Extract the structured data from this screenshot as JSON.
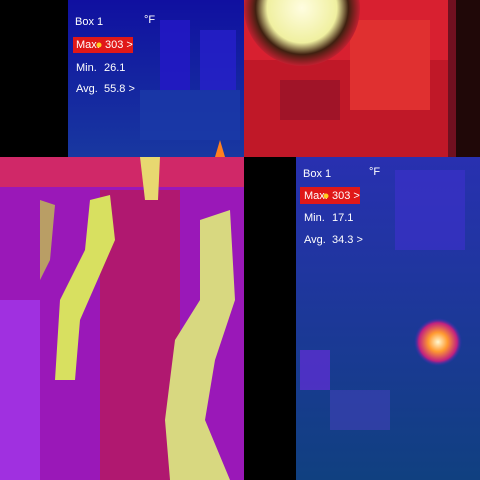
{
  "panels": [
    {
      "box": "Box 1",
      "unit": "°F",
      "max_label": "Max.",
      "max_value": "303 >",
      "min_label": "Min.",
      "min_value": "26.1",
      "avg_label": "Avg.",
      "avg_value": "55.8 >"
    },
    {
      "box": "Box 1",
      "unit": "°F",
      "max_label": "Max.",
      "max_value": "303 >",
      "min_label": "Min.",
      "min_value": "17.1",
      "avg_label": "Avg.",
      "avg_value": "34.3 >"
    }
  ]
}
